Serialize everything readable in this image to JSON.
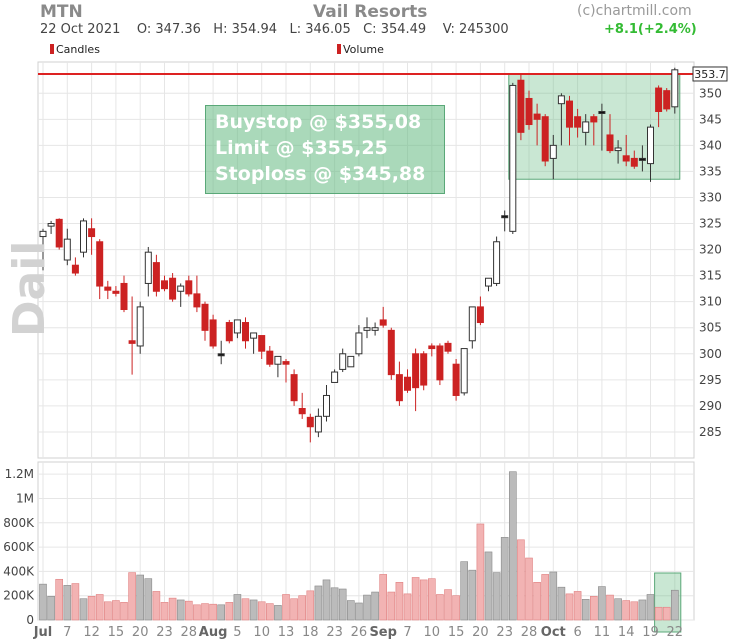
{
  "header": {
    "ticker": "MTN",
    "company": "Vail Resorts",
    "source": "(c)chartmill.com",
    "quote": "22 Oct 2021    O: 347.36   H: 354.94   L: 346.05   C: 354.49    V: 245300",
    "change": "+8.1(+2.4%)"
  },
  "legend": {
    "candles": "Candles",
    "volume": "Volume"
  },
  "annotation": {
    "line1": "Buystop @ $355,08",
    "line2": "Limit @ $355,25",
    "line3": "Stoploss @ $345,88"
  },
  "watermark": "Daily",
  "colors": {
    "bear": "#cc2222",
    "bull": "#ffffff",
    "neutral": "#111111",
    "bear_volume": "#f2b3b3",
    "bull_volume": "#bbbbbb",
    "resistance": "#dd2222",
    "highlight": "#64b982",
    "grid": "#e6e6e6",
    "change": "#33bb33"
  },
  "chart_data": [
    {
      "type": "candlestick",
      "title": "Vail Resorts",
      "last_price_label": "353.7",
      "resistance_level": 353.7,
      "ylim": [
        280,
        356
      ],
      "yticks": [
        285,
        290,
        295,
        300,
        305,
        310,
        315,
        320,
        325,
        330,
        335,
        340,
        345,
        350
      ],
      "xtick_labels": [
        "Jul",
        "7",
        "12",
        "15",
        "20",
        "23",
        "28",
        "Aug",
        "5",
        "10",
        "13",
        "18",
        "23",
        "26",
        "Sep",
        "7",
        "10",
        "15",
        "20",
        "23",
        "28",
        "Oct",
        "6",
        "11",
        "14",
        "19",
        "22"
      ],
      "xtick_indices": [
        0,
        3,
        6,
        9,
        12,
        15,
        18,
        21,
        24,
        27,
        30,
        33,
        36,
        39,
        42,
        45,
        48,
        51,
        54,
        57,
        60,
        63,
        66,
        69,
        72,
        75,
        78
      ],
      "grid": true,
      "highlight_box": {
        "start_index": 58,
        "end_index": 78,
        "low": 333.5,
        "high": 353.7
      },
      "candles": [
        [
          322.5,
          324,
          316,
          323.5
        ],
        [
          324.5,
          325.5,
          323,
          325
        ],
        [
          325.8,
          326,
          320,
          320.5
        ],
        [
          318,
          324,
          317,
          322
        ],
        [
          317,
          318.5,
          315,
          315.5
        ],
        [
          319.5,
          326,
          318.5,
          325.5
        ],
        [
          324,
          326,
          319,
          322.5
        ],
        [
          321.5,
          322,
          310.5,
          313
        ],
        [
          312.8,
          314,
          310.5,
          312.2
        ],
        [
          312,
          313,
          311,
          311.6
        ],
        [
          313.5,
          315,
          308,
          308.5
        ],
        [
          302.5,
          311,
          296,
          302
        ],
        [
          301.5,
          310,
          300,
          309
        ],
        [
          313.5,
          320.5,
          311,
          319.5
        ],
        [
          317.5,
          319,
          311,
          312
        ],
        [
          314,
          315,
          312,
          312.5
        ],
        [
          314.5,
          315.5,
          310,
          310.5
        ],
        [
          312,
          313.5,
          309,
          313
        ],
        [
          314,
          315,
          311,
          311.5
        ],
        [
          311.5,
          315,
          308,
          309
        ],
        [
          309.5,
          310,
          302.5,
          304.5
        ],
        [
          306.5,
          307.5,
          301,
          301.5
        ],
        [
          300,
          302.5,
          298,
          300
        ],
        [
          306,
          306.5,
          302,
          302.5
        ],
        [
          304,
          306.5,
          303,
          306.5
        ],
        [
          306,
          307,
          301,
          302.5
        ],
        [
          303,
          304,
          300,
          304
        ],
        [
          303.5,
          303.5,
          299,
          300.5
        ],
        [
          300.5,
          301.5,
          297.5,
          298
        ],
        [
          298,
          299,
          295.5,
          299.5
        ],
        [
          298.5,
          299,
          294.5,
          298
        ],
        [
          296,
          297,
          290,
          291
        ],
        [
          289.5,
          292.5,
          287.5,
          288.5
        ],
        [
          287.8,
          288.5,
          283,
          286
        ],
        [
          285,
          289.5,
          284,
          288
        ],
        [
          288,
          294,
          287,
          292
        ],
        [
          294.5,
          297,
          294.5,
          296.5
        ],
        [
          297,
          301,
          296.5,
          300
        ],
        [
          297.5,
          299.5,
          297.5,
          299.5
        ],
        [
          300,
          305.5,
          299.5,
          304
        ],
        [
          304.5,
          307,
          303,
          305
        ],
        [
          304.5,
          306,
          303.5,
          305
        ],
        [
          306.5,
          309,
          305,
          305.5
        ],
        [
          304.5,
          305,
          295,
          296
        ],
        [
          296,
          298.5,
          290,
          291
        ],
        [
          295.5,
          297,
          292.5,
          293
        ],
        [
          300,
          301,
          289,
          293.5
        ],
        [
          300,
          300.5,
          293,
          294
        ],
        [
          301.5,
          302,
          299.5,
          301
        ],
        [
          301.5,
          302,
          294,
          295
        ],
        [
          302,
          302.5,
          300,
          300.5
        ],
        [
          298,
          299,
          291,
          292
        ],
        [
          292.5,
          301,
          292,
          301
        ],
        [
          302.5,
          309,
          301,
          309
        ],
        [
          309,
          311,
          305.5,
          306
        ],
        [
          313,
          314.5,
          312,
          314.5
        ],
        [
          313.5,
          322.5,
          313,
          321.5
        ],
        [
          326.5,
          327.5,
          323.5,
          326.5
        ],
        [
          323.5,
          352,
          323,
          351.5
        ],
        [
          352.5,
          353.7,
          341,
          342.5
        ],
        [
          349,
          350.5,
          343,
          344
        ],
        [
          346,
          348,
          340,
          345
        ],
        [
          345.5,
          346,
          336,
          337
        ],
        [
          337.5,
          342,
          333.5,
          340
        ],
        [
          348,
          350,
          340,
          349.5
        ],
        [
          348.5,
          349.5,
          340,
          343.5
        ],
        [
          345.5,
          347,
          341.5,
          343.5
        ],
        [
          342.5,
          346,
          340,
          344.5
        ],
        [
          345.5,
          346,
          340,
          344.5
        ],
        [
          346.5,
          348,
          339,
          346.5
        ],
        [
          342,
          346,
          338.5,
          339
        ],
        [
          339,
          341,
          336.5,
          339.5
        ],
        [
          338,
          342,
          336,
          337
        ],
        [
          337.5,
          339,
          335.5,
          336
        ],
        [
          337.5,
          340,
          335,
          337.5
        ],
        [
          336.5,
          344,
          333,
          343.5
        ],
        [
          351,
          351.5,
          343.5,
          346.5
        ],
        [
          350.5,
          351,
          346.5,
          347
        ],
        [
          347.4,
          354.9,
          346.1,
          354.5
        ]
      ]
    },
    {
      "type": "bar",
      "title": "Volume",
      "ylim": [
        0,
        1300000
      ],
      "ytick_values": [
        0,
        200000,
        400000,
        600000,
        800000,
        1000000,
        1200000
      ],
      "ytick_labels": [
        "0",
        "200K",
        "400K",
        "600K",
        "800K",
        "1M",
        "1.2M"
      ],
      "values": [
        295000,
        195000,
        335000,
        285000,
        300000,
        175000,
        195000,
        210000,
        150000,
        160000,
        145000,
        390000,
        370000,
        340000,
        235000,
        145000,
        180000,
        165000,
        155000,
        125000,
        135000,
        130000,
        125000,
        145000,
        210000,
        175000,
        165000,
        150000,
        135000,
        120000,
        210000,
        175000,
        200000,
        240000,
        280000,
        330000,
        265000,
        255000,
        160000,
        140000,
        205000,
        230000,
        375000,
        230000,
        310000,
        215000,
        350000,
        330000,
        340000,
        210000,
        250000,
        200000,
        480000,
        410000,
        790000,
        560000,
        390000,
        680000,
        1220000,
        660000,
        510000,
        310000,
        375000,
        395000,
        270000,
        215000,
        235000,
        170000,
        195000,
        275000,
        205000,
        175000,
        160000,
        150000,
        165000,
        210000,
        105000,
        105000,
        245000
      ]
    }
  ]
}
